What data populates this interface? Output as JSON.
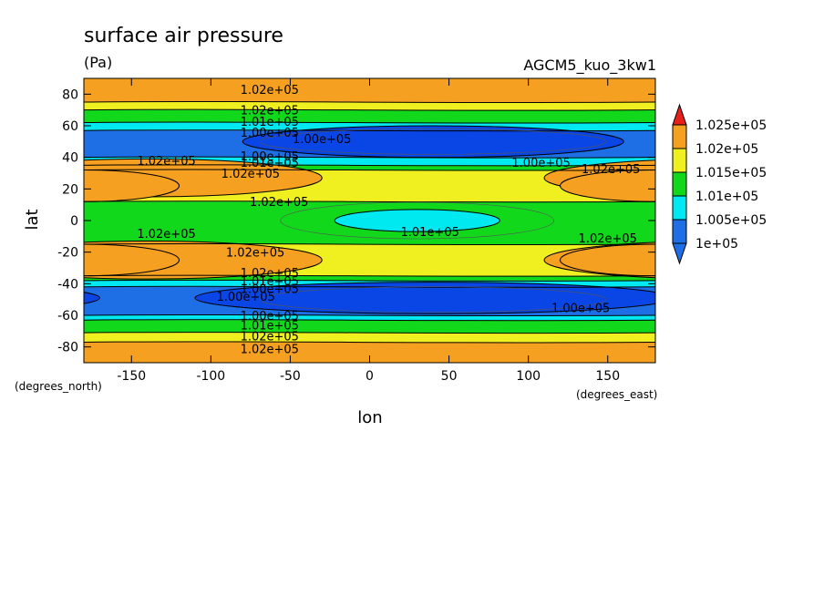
{
  "chart_data": {
    "type": "contour",
    "title": "surface air pressure",
    "units": "(Pa)",
    "dataset": "AGCM5_kuo_3kw1",
    "xlabel": "lon",
    "ylabel": "lat",
    "x_units": "(degrees_east)",
    "y_units": "(degrees_north)",
    "xlim": [
      -180,
      180
    ],
    "ylim": [
      -90,
      90
    ],
    "xticks": [
      -150,
      -100,
      -50,
      0,
      50,
      100,
      150
    ],
    "yticks": [
      80,
      60,
      40,
      20,
      0,
      -20,
      -40,
      -60,
      -80
    ],
    "x_tick_labels": [
      "-150",
      "-100",
      "-50",
      "0",
      "50",
      "100",
      "150"
    ],
    "y_tick_labels": [
      "80",
      "60",
      "40",
      "20",
      "0",
      "-20",
      "-40",
      "-60",
      "-80"
    ],
    "colorbar": {
      "levels": [
        "1e+05",
        "1.005e+05",
        "1.01e+05",
        "1.015e+05",
        "1.02e+05",
        "1.025e+05"
      ],
      "colors": [
        "#1e6ee6",
        "#00e8f0",
        "#11d81b",
        "#f0f020",
        "#f5a020",
        "#e8201c"
      ]
    },
    "bands": [
      {
        "lat_min": 75,
        "lat_max": 90,
        "class": "orange"
      },
      {
        "lat_min": 70,
        "lat_max": 75,
        "class": "yellow"
      },
      {
        "lat_min": 62,
        "lat_max": 70,
        "class": "green"
      },
      {
        "lat_min": 57,
        "lat_max": 62,
        "class": "cyan"
      },
      {
        "lat_min": 40,
        "lat_max": 57,
        "class": "blue"
      },
      {
        "lat_min": 35,
        "lat_max": 40,
        "class": "cyan"
      },
      {
        "lat_min": 32,
        "lat_max": 35,
        "class": "green"
      },
      {
        "lat_min": 12,
        "lat_max": 32,
        "class": "yellow"
      },
      {
        "lat_min": -15,
        "lat_max": 12,
        "class": "green"
      },
      {
        "lat_min": -35,
        "lat_max": -15,
        "class": "yellow"
      },
      {
        "lat_min": -38,
        "lat_max": -35,
        "class": "green"
      },
      {
        "lat_min": -42,
        "lat_max": -38,
        "class": "cyan"
      },
      {
        "lat_min": -60,
        "lat_max": -42,
        "class": "blue"
      },
      {
        "lat_min": -63,
        "lat_max": -60,
        "class": "cyan"
      },
      {
        "lat_min": -71,
        "lat_max": -63,
        "class": "green"
      },
      {
        "lat_min": -77,
        "lat_max": -71,
        "class": "yellow"
      },
      {
        "lat_min": -90,
        "lat_max": -77,
        "class": "orange"
      }
    ],
    "blobs": [
      {
        "class": "orange",
        "lon": -140,
        "lat": 27,
        "rlon": 110,
        "rlat": 12
      },
      {
        "class": "orange",
        "lon": 180,
        "lat": 22,
        "rlon": 60,
        "rlat": 10
      },
      {
        "class": "orange",
        "lon": -140,
        "lat": -25,
        "rlon": 110,
        "rlat": 12
      },
      {
        "class": "orange",
        "lon": 180,
        "lat": -25,
        "rlon": 60,
        "rlat": 10
      },
      {
        "class": "darkblue",
        "lon": 40,
        "lat": 50,
        "rlon": 120,
        "rlat": 10
      },
      {
        "class": "darkblue",
        "lon": 40,
        "lat": -49,
        "rlon": 150,
        "rlat": 10
      },
      {
        "class": "cyan",
        "lon": 30,
        "lat": 0,
        "rlon": 52,
        "rlat": 7
      }
    ],
    "contour_labels": [
      {
        "text": "1.02e+05",
        "lon": -63,
        "lat": 83
      },
      {
        "text": "1.02e+05",
        "lon": -63,
        "lat": 70
      },
      {
        "text": "1.01e+05",
        "lon": -63,
        "lat": 63
      },
      {
        "text": "1.00e+05",
        "lon": -63,
        "lat": 56
      },
      {
        "text": "1.00e+05",
        "lon": -30,
        "lat": 52
      },
      {
        "text": "1.02e+05",
        "lon": -128,
        "lat": 38
      },
      {
        "text": "1.00e+05",
        "lon": -63,
        "lat": 41
      },
      {
        "text": "1.01e+05",
        "lon": -63,
        "lat": 37
      },
      {
        "text": "1.02e+05",
        "lon": -75,
        "lat": 30
      },
      {
        "text": "1.00e+05",
        "lon": 108,
        "lat": 37
      },
      {
        "text": "1.02e+05",
        "lon": 152,
        "lat": 33
      },
      {
        "text": "1.02e+05",
        "lon": -57,
        "lat": 12
      },
      {
        "text": "1.02e+05",
        "lon": -128,
        "lat": -8
      },
      {
        "text": "1.01e+05",
        "lon": 38,
        "lat": -7
      },
      {
        "text": "1.02e+05",
        "lon": 150,
        "lat": -11
      },
      {
        "text": "1.02e+05",
        "lon": -72,
        "lat": -20
      },
      {
        "text": "1.02e+05",
        "lon": -63,
        "lat": -33
      },
      {
        "text": "1.01e+05",
        "lon": -63,
        "lat": -38
      },
      {
        "text": "1.00e+05",
        "lon": -63,
        "lat": -43
      },
      {
        "text": "1.00e+05",
        "lon": -78,
        "lat": -48
      },
      {
        "text": "1.00e+05",
        "lon": 133,
        "lat": -55
      },
      {
        "text": "1.00e+05",
        "lon": -63,
        "lat": -60
      },
      {
        "text": "1.01e+05",
        "lon": -63,
        "lat": -66
      },
      {
        "text": "1.02e+05",
        "lon": -63,
        "lat": -73
      },
      {
        "text": "1.02e+05",
        "lon": -63,
        "lat": -81
      }
    ],
    "fill_colors": {
      "orange": "#f5a020",
      "yellow": "#f0f020",
      "green": "#11d81b",
      "cyan": "#00e8f0",
      "blue": "#1e6ee6",
      "darkblue": "#0a46e6"
    }
  }
}
